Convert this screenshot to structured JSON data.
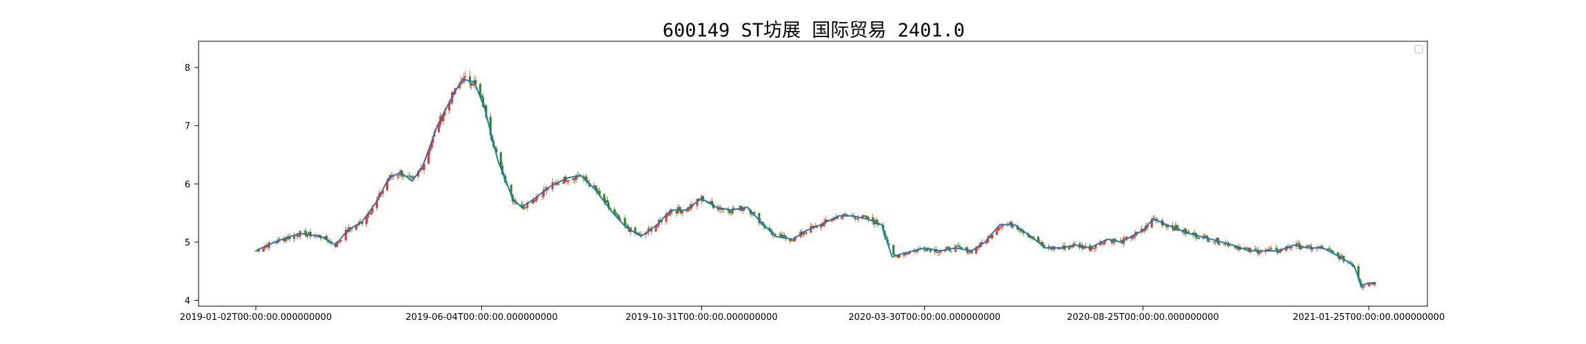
{
  "chart_data": {
    "type": "candlestick",
    "title": "600149 ST坊展 国际贸易 2401.0",
    "xlabel": "",
    "ylabel": "",
    "x_ticks": [
      "2019-01-02T00:00:00.000000000",
      "2019-06-04T00:00:00.000000000",
      "2019-10-31T00:00:00.000000000",
      "2020-03-30T00:00:00.000000000",
      "2020-08-25T00:00:00.000000000",
      "2021-01-25T00:00:00.000000000"
    ],
    "y_ticks": [
      4,
      5,
      6,
      7,
      8
    ],
    "ylim": [
      3.9,
      8.45
    ],
    "grid": false,
    "legend": "top-right",
    "colors": {
      "up": "#ff2a2a",
      "down": "#1e8c1e",
      "ma": "#1f77b4"
    },
    "series": [
      {
        "type": "ma_line",
        "approx_close_points": [
          [
            "2019-01-02",
            4.85
          ],
          [
            "2019-01-10",
            4.95
          ],
          [
            "2019-01-20",
            5.05
          ],
          [
            "2019-02-01",
            5.15
          ],
          [
            "2019-02-15",
            5.1
          ],
          [
            "2019-02-25",
            4.95
          ],
          [
            "2019-03-05",
            5.2
          ],
          [
            "2019-03-15",
            5.35
          ],
          [
            "2019-03-25",
            5.7
          ],
          [
            "2019-04-02",
            6.1
          ],
          [
            "2019-04-10",
            6.2
          ],
          [
            "2019-04-18",
            6.05
          ],
          [
            "2019-04-25",
            6.3
          ],
          [
            "2019-05-05",
            7.0
          ],
          [
            "2019-05-15",
            7.5
          ],
          [
            "2019-05-22",
            7.8
          ],
          [
            "2019-05-30",
            7.75
          ],
          [
            "2019-06-06",
            7.3
          ],
          [
            "2019-06-15",
            6.4
          ],
          [
            "2019-06-25",
            5.75
          ],
          [
            "2019-07-01",
            5.6
          ],
          [
            "2019-07-10",
            5.75
          ],
          [
            "2019-07-20",
            5.95
          ],
          [
            "2019-08-01",
            6.1
          ],
          [
            "2019-08-10",
            6.15
          ],
          [
            "2019-08-20",
            5.9
          ],
          [
            "2019-09-01",
            5.5
          ],
          [
            "2019-09-10",
            5.25
          ],
          [
            "2019-09-20",
            5.1
          ],
          [
            "2019-10-01",
            5.3
          ],
          [
            "2019-10-10",
            5.55
          ],
          [
            "2019-10-20",
            5.55
          ],
          [
            "2019-10-31",
            5.75
          ],
          [
            "2019-11-10",
            5.6
          ],
          [
            "2019-11-20",
            5.55
          ],
          [
            "2019-12-01",
            5.6
          ],
          [
            "2019-12-10",
            5.35
          ],
          [
            "2019-12-20",
            5.1
          ],
          [
            "2020-01-01",
            5.05
          ],
          [
            "2020-01-10",
            5.2
          ],
          [
            "2020-01-20",
            5.3
          ],
          [
            "2020-02-01",
            5.45
          ],
          [
            "2020-02-10",
            5.45
          ],
          [
            "2020-02-20",
            5.4
          ],
          [
            "2020-03-01",
            5.3
          ],
          [
            "2020-03-08",
            4.75
          ],
          [
            "2020-03-15",
            4.8
          ],
          [
            "2020-03-30",
            4.9
          ],
          [
            "2020-04-10",
            4.85
          ],
          [
            "2020-04-20",
            4.9
          ],
          [
            "2020-05-01",
            4.85
          ],
          [
            "2020-05-10",
            5.0
          ],
          [
            "2020-05-20",
            5.3
          ],
          [
            "2020-05-30",
            5.3
          ],
          [
            "2020-06-10",
            5.1
          ],
          [
            "2020-06-20",
            4.9
          ],
          [
            "2020-07-01",
            4.9
          ],
          [
            "2020-07-10",
            4.95
          ],
          [
            "2020-07-20",
            4.9
          ],
          [
            "2020-08-01",
            5.05
          ],
          [
            "2020-08-10",
            5.0
          ],
          [
            "2020-08-25",
            5.2
          ],
          [
            "2020-09-01",
            5.4
          ],
          [
            "2020-09-10",
            5.3
          ],
          [
            "2020-09-25",
            5.15
          ],
          [
            "2020-10-10",
            5.05
          ],
          [
            "2020-10-25",
            4.95
          ],
          [
            "2020-11-05",
            4.85
          ],
          [
            "2020-11-15",
            4.85
          ],
          [
            "2020-11-25",
            4.85
          ],
          [
            "2020-12-05",
            4.95
          ],
          [
            "2020-12-15",
            4.9
          ],
          [
            "2020-12-25",
            4.9
          ],
          [
            "2021-01-05",
            4.75
          ],
          [
            "2021-01-15",
            4.6
          ],
          [
            "2021-01-20",
            4.25
          ],
          [
            "2021-01-25",
            4.3
          ],
          [
            "2021-01-29",
            4.3
          ]
        ]
      }
    ]
  }
}
